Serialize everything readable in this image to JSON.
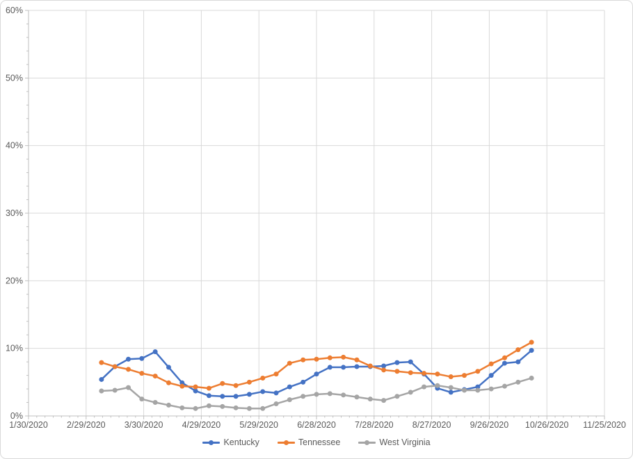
{
  "chart_data": {
    "type": "line",
    "title": "",
    "x": [
      "3/8/2020",
      "3/15/2020",
      "3/22/2020",
      "3/29/2020",
      "4/5/2020",
      "4/12/2020",
      "4/19/2020",
      "4/26/2020",
      "5/3/2020",
      "5/10/2020",
      "5/17/2020",
      "5/24/2020",
      "5/31/2020",
      "6/7/2020",
      "6/14/2020",
      "6/21/2020",
      "6/28/2020",
      "7/5/2020",
      "7/12/2020",
      "7/19/2020",
      "7/26/2020",
      "8/2/2020",
      "8/9/2020",
      "8/16/2020",
      "8/23/2020",
      "8/30/2020",
      "9/6/2020",
      "9/13/2020",
      "9/20/2020",
      "9/27/2020",
      "10/4/2020",
      "10/11/2020",
      "10/18/2020"
    ],
    "series": [
      {
        "name": "Kentucky",
        "color": "#4472C4",
        "values": [
          5.4,
          7.3,
          8.4,
          8.5,
          9.5,
          7.2,
          4.9,
          3.7,
          3.0,
          2.9,
          2.9,
          3.2,
          3.6,
          3.4,
          4.3,
          5.0,
          6.2,
          7.2,
          7.2,
          7.3,
          7.3,
          7.4,
          7.9,
          8.0,
          6.2,
          4.1,
          3.5,
          3.9,
          4.3,
          6.0,
          7.8,
          8.0,
          9.7
        ]
      },
      {
        "name": "Tennessee",
        "color": "#ED7D31",
        "values": [
          7.9,
          7.3,
          6.9,
          6.3,
          5.9,
          4.9,
          4.4,
          4.3,
          4.1,
          4.8,
          4.5,
          5.0,
          5.6,
          6.2,
          7.8,
          8.3,
          8.4,
          8.6,
          8.7,
          8.3,
          7.4,
          6.8,
          6.6,
          6.4,
          6.3,
          6.2,
          5.8,
          6.0,
          6.6,
          7.7,
          8.6,
          9.8,
          10.9
        ]
      },
      {
        "name": "West Virginia",
        "color": "#A5A5A5",
        "values": [
          3.7,
          3.8,
          4.2,
          2.5,
          2.0,
          1.6,
          1.2,
          1.1,
          1.5,
          1.4,
          1.2,
          1.1,
          1.1,
          1.8,
          2.4,
          2.9,
          3.2,
          3.3,
          3.1,
          2.8,
          2.5,
          2.3,
          2.9,
          3.5,
          4.3,
          4.5,
          4.2,
          3.8,
          3.8,
          4.0,
          4.4,
          5.0,
          5.6
        ]
      }
    ],
    "x_axis": {
      "tick_labels": [
        "1/30/2020",
        "2/29/2020",
        "3/30/2020",
        "4/29/2020",
        "5/29/2020",
        "6/28/2020",
        "7/28/2020",
        "8/27/2020",
        "9/26/2020",
        "10/26/2020",
        "11/25/2020"
      ],
      "major_unit_days": 30,
      "minor_divisions_per_major": 7
    },
    "y_axis": {
      "tick_labels": [
        "0%",
        "10%",
        "20%",
        "30%",
        "40%",
        "50%",
        "60%"
      ],
      "min_pct": 0,
      "max_pct": 60,
      "major_step_pct": 10,
      "minor_step_pct": 2,
      "format": "percent"
    },
    "grid": true,
    "legend_position": "bottom-center",
    "styles": {
      "gridline_color": "#D9D9D9",
      "axis_color": "#BFBFBF",
      "tick_label_color": "#595959",
      "background": "#FFFFFF",
      "line_width": 2.5,
      "marker_radius": 3.5
    }
  }
}
